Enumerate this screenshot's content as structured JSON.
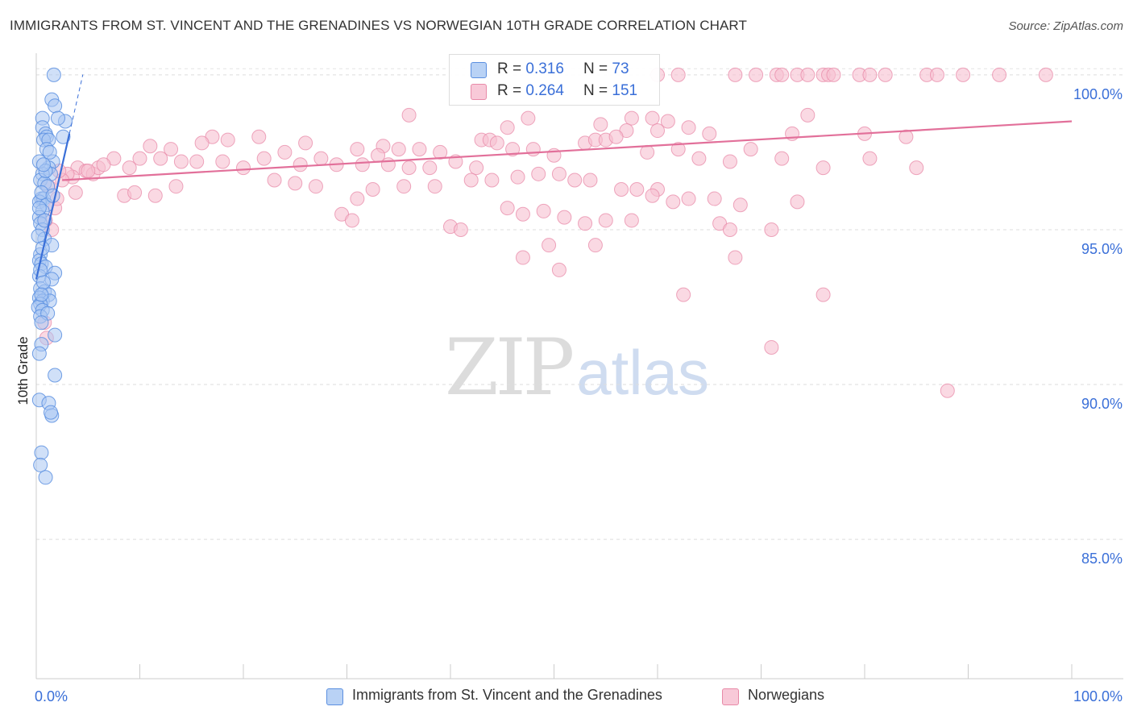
{
  "title": "IMMIGRANTS FROM ST. VINCENT AND THE GRENADINES VS NORWEGIAN 10TH GRADE CORRELATION CHART",
  "source": "Source: ZipAtlas.com",
  "watermark": {
    "zip": "ZIP",
    "atlas": "atlas"
  },
  "legend": {
    "blue": {
      "r_label": "R =",
      "r_value": "0.316",
      "n_label": "N =",
      "n_value": "73"
    },
    "pink": {
      "r_label": "R =",
      "r_value": "0.264",
      "n_label": "N =",
      "n_value": "151"
    }
  },
  "colors": {
    "blue": "#5b8fe0",
    "blue_fill": "#a9c6f2",
    "pink": "#e88aa8",
    "pink_fill": "#f6bfd0",
    "blue_line": "#3a6fd8",
    "pink_line": "#e2709a",
    "tick_text": "#3a6fd8"
  },
  "chart_data": {
    "type": "scatter",
    "title": "IMMIGRANTS FROM ST. VINCENT AND THE GRENADINES VS NORWEGIAN 10TH GRADE CORRELATION CHART",
    "xlabel": "",
    "ylabel": "10th Grade",
    "xlim": [
      0,
      100
    ],
    "ylim": [
      80.5,
      100.7
    ],
    "x_tick_labels": [
      "0.0%",
      "100.0%"
    ],
    "y_ticks": [
      85,
      90,
      95,
      100
    ],
    "y_tick_labels": [
      "85.0%",
      "90.0%",
      "95.0%",
      "100.0%"
    ],
    "grid": true,
    "legend_position": "bottom",
    "series": [
      {
        "name": "Immigrants from St. Vincent and the Grenadines",
        "color": "#5b8fe0",
        "r": 0.316,
        "n": 73,
        "trend": {
          "x": [
            0.0,
            3.2
          ],
          "y": [
            93.4,
            98.1
          ]
        },
        "points": [
          [
            1.7,
            100.0
          ],
          [
            1.5,
            99.2
          ],
          [
            1.8,
            99.0
          ],
          [
            0.6,
            98.6
          ],
          [
            2.8,
            98.5
          ],
          [
            0.6,
            98.3
          ],
          [
            0.9,
            98.1
          ],
          [
            1.0,
            98.0
          ],
          [
            0.7,
            97.9
          ],
          [
            2.6,
            98.0
          ],
          [
            1.2,
            97.9
          ],
          [
            1.0,
            97.6
          ],
          [
            1.6,
            97.2
          ],
          [
            1.2,
            97.0
          ],
          [
            1.4,
            96.8
          ],
          [
            0.6,
            96.8
          ],
          [
            0.4,
            96.6
          ],
          [
            0.8,
            96.5
          ],
          [
            1.1,
            96.4
          ],
          [
            0.5,
            96.0
          ],
          [
            0.7,
            96.0
          ],
          [
            0.3,
            95.9
          ],
          [
            1.0,
            95.8
          ],
          [
            0.6,
            95.6
          ],
          [
            0.3,
            95.4
          ],
          [
            0.4,
            95.2
          ],
          [
            0.6,
            95.0
          ],
          [
            0.8,
            94.7
          ],
          [
            1.5,
            94.5
          ],
          [
            0.4,
            94.2
          ],
          [
            0.3,
            94.0
          ],
          [
            0.5,
            93.9
          ],
          [
            0.9,
            93.8
          ],
          [
            1.8,
            93.6
          ],
          [
            0.3,
            93.5
          ],
          [
            1.5,
            93.4
          ],
          [
            0.4,
            93.1
          ],
          [
            0.8,
            93.0
          ],
          [
            1.2,
            92.9
          ],
          [
            0.3,
            92.8
          ],
          [
            0.6,
            92.7
          ],
          [
            1.3,
            92.7
          ],
          [
            0.4,
            92.6
          ],
          [
            0.2,
            92.5
          ],
          [
            0.6,
            92.4
          ],
          [
            0.4,
            92.2
          ],
          [
            1.8,
            91.6
          ],
          [
            0.5,
            91.3
          ],
          [
            0.3,
            91.0
          ],
          [
            1.8,
            90.3
          ],
          [
            0.3,
            89.5
          ],
          [
            1.2,
            89.4
          ],
          [
            1.5,
            89.0
          ],
          [
            1.4,
            89.1
          ],
          [
            0.5,
            87.8
          ],
          [
            0.4,
            87.4
          ],
          [
            0.9,
            87.0
          ],
          [
            0.3,
            97.2
          ],
          [
            0.5,
            96.2
          ],
          [
            0.8,
            95.3
          ],
          [
            0.2,
            94.8
          ],
          [
            0.7,
            93.3
          ],
          [
            1.1,
            92.3
          ],
          [
            0.5,
            92.0
          ],
          [
            0.9,
            96.9
          ],
          [
            0.6,
            94.4
          ],
          [
            1.3,
            97.5
          ],
          [
            0.4,
            93.7
          ],
          [
            2.1,
            98.6
          ],
          [
            0.7,
            97.1
          ],
          [
            1.6,
            96.1
          ],
          [
            0.3,
            95.7
          ],
          [
            0.5,
            92.9
          ]
        ]
      },
      {
        "name": "Norwegians",
        "color": "#e88aa8",
        "r": 0.264,
        "n": 151,
        "trend": {
          "x": [
            2.5,
            100.0
          ],
          "y": [
            96.6,
            98.5
          ]
        },
        "points": [
          [
            60.0,
            100.0
          ],
          [
            62.0,
            100.0
          ],
          [
            67.5,
            100.0
          ],
          [
            69.5,
            100.0
          ],
          [
            71.5,
            100.0
          ],
          [
            72.0,
            100.0
          ],
          [
            73.5,
            100.0
          ],
          [
            74.5,
            100.0
          ],
          [
            76.0,
            100.0
          ],
          [
            76.5,
            100.0
          ],
          [
            77.0,
            100.0
          ],
          [
            79.5,
            100.0
          ],
          [
            80.5,
            100.0
          ],
          [
            82.0,
            100.0
          ],
          [
            86.0,
            100.0
          ],
          [
            87.0,
            100.0
          ],
          [
            89.5,
            100.0
          ],
          [
            93.0,
            100.0
          ],
          [
            97.5,
            100.0
          ],
          [
            36.0,
            98.7
          ],
          [
            47.5,
            98.6
          ],
          [
            57.5,
            98.6
          ],
          [
            59.5,
            98.6
          ],
          [
            61.0,
            98.5
          ],
          [
            74.5,
            98.7
          ],
          [
            54.5,
            98.4
          ],
          [
            57.0,
            98.2
          ],
          [
            45.5,
            98.3
          ],
          [
            60.0,
            98.2
          ],
          [
            63.0,
            98.3
          ],
          [
            65.0,
            98.1
          ],
          [
            73.0,
            98.1
          ],
          [
            80.0,
            98.1
          ],
          [
            84.0,
            98.0
          ],
          [
            17.0,
            98.0
          ],
          [
            21.5,
            98.0
          ],
          [
            16.0,
            97.8
          ],
          [
            18.5,
            97.9
          ],
          [
            11.0,
            97.7
          ],
          [
            13.0,
            97.6
          ],
          [
            26.0,
            97.8
          ],
          [
            31.0,
            97.6
          ],
          [
            33.5,
            97.7
          ],
          [
            35.0,
            97.6
          ],
          [
            37.0,
            97.6
          ],
          [
            39.0,
            97.5
          ],
          [
            43.0,
            97.9
          ],
          [
            43.8,
            97.9
          ],
          [
            44.5,
            97.8
          ],
          [
            46.0,
            97.6
          ],
          [
            48.0,
            97.6
          ],
          [
            50.0,
            97.4
          ],
          [
            53.0,
            97.8
          ],
          [
            54.0,
            97.9
          ],
          [
            55.0,
            97.9
          ],
          [
            56.0,
            98.0
          ],
          [
            59.0,
            97.5
          ],
          [
            62.0,
            97.6
          ],
          [
            64.0,
            97.3
          ],
          [
            67.0,
            97.2
          ],
          [
            69.0,
            97.6
          ],
          [
            72.0,
            97.3
          ],
          [
            76.0,
            97.0
          ],
          [
            80.5,
            97.3
          ],
          [
            85.0,
            97.0
          ],
          [
            7.5,
            97.3
          ],
          [
            9.0,
            97.0
          ],
          [
            10.0,
            97.3
          ],
          [
            12.0,
            97.3
          ],
          [
            14.0,
            97.2
          ],
          [
            15.5,
            97.2
          ],
          [
            18.0,
            97.2
          ],
          [
            20.0,
            97.0
          ],
          [
            22.0,
            97.3
          ],
          [
            24.0,
            97.5
          ],
          [
            25.5,
            97.1
          ],
          [
            27.5,
            97.3
          ],
          [
            29.0,
            97.1
          ],
          [
            31.5,
            97.1
          ],
          [
            33.0,
            97.4
          ],
          [
            34.0,
            97.1
          ],
          [
            36.0,
            97.0
          ],
          [
            38.0,
            97.0
          ],
          [
            40.5,
            97.2
          ],
          [
            42.5,
            97.0
          ],
          [
            44.0,
            96.6
          ],
          [
            46.5,
            96.7
          ],
          [
            48.5,
            96.8
          ],
          [
            50.5,
            96.8
          ],
          [
            52.0,
            96.6
          ],
          [
            53.5,
            96.6
          ],
          [
            56.5,
            96.3
          ],
          [
            58.0,
            96.3
          ],
          [
            60.0,
            96.3
          ],
          [
            63.0,
            96.0
          ],
          [
            65.5,
            96.0
          ],
          [
            68.0,
            95.8
          ],
          [
            71.0,
            95.0
          ],
          [
            73.5,
            95.9
          ],
          [
            4.0,
            97.0
          ],
          [
            4.8,
            96.9
          ],
          [
            5.5,
            96.8
          ],
          [
            6.0,
            97.0
          ],
          [
            3.5,
            96.7
          ],
          [
            3.0,
            96.8
          ],
          [
            2.5,
            96.6
          ],
          [
            6.5,
            97.1
          ],
          [
            5.0,
            96.9
          ],
          [
            8.5,
            96.1
          ],
          [
            9.5,
            96.2
          ],
          [
            11.5,
            96.1
          ],
          [
            13.5,
            96.4
          ],
          [
            23.0,
            96.6
          ],
          [
            25.0,
            96.5
          ],
          [
            27.0,
            96.4
          ],
          [
            31.0,
            96.0
          ],
          [
            32.5,
            96.3
          ],
          [
            35.5,
            96.4
          ],
          [
            38.5,
            96.4
          ],
          [
            42.0,
            96.6
          ],
          [
            45.5,
            95.7
          ],
          [
            47.0,
            95.5
          ],
          [
            49.0,
            95.6
          ],
          [
            51.0,
            95.4
          ],
          [
            53.0,
            95.2
          ],
          [
            55.0,
            95.3
          ],
          [
            57.5,
            95.3
          ],
          [
            59.5,
            96.1
          ],
          [
            61.5,
            95.9
          ],
          [
            29.5,
            95.5
          ],
          [
            30.5,
            95.3
          ],
          [
            40.0,
            95.1
          ],
          [
            41.0,
            95.0
          ],
          [
            47.0,
            94.1
          ],
          [
            49.5,
            94.5
          ],
          [
            50.5,
            93.7
          ],
          [
            67.5,
            94.1
          ],
          [
            62.5,
            92.9
          ],
          [
            76.0,
            92.9
          ],
          [
            71.0,
            91.2
          ],
          [
            88.0,
            89.8
          ],
          [
            0.8,
            92.0
          ],
          [
            1.0,
            91.5
          ],
          [
            1.5,
            95.0
          ],
          [
            1.8,
            95.7
          ],
          [
            2.0,
            96.0
          ],
          [
            1.2,
            96.4
          ],
          [
            0.9,
            95.3
          ],
          [
            2.2,
            96.9
          ],
          [
            3.8,
            96.2
          ],
          [
            66.0,
            95.2
          ],
          [
            67.0,
            95.0
          ],
          [
            54.0,
            94.5
          ]
        ]
      }
    ]
  },
  "bottom_legend": {
    "blue_label": "Immigrants from St. Vincent and the Grenadines",
    "pink_label": "Norwegians"
  }
}
